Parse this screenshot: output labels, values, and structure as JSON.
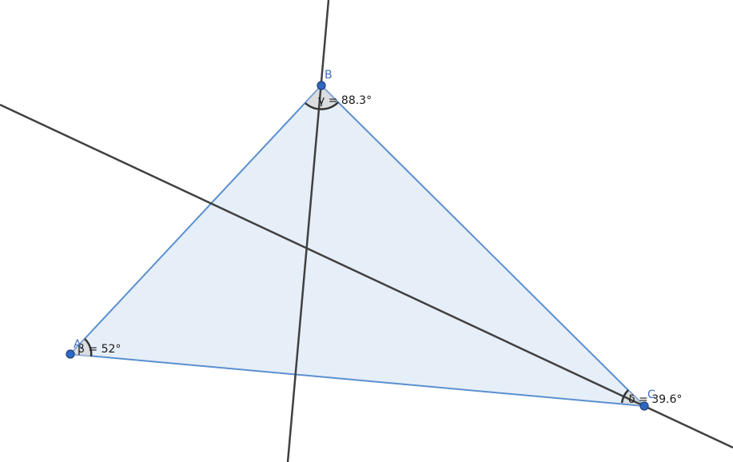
{
  "points": {
    "A": {
      "label": "A"
    },
    "B": {
      "label": "B"
    },
    "C": {
      "label": "C"
    }
  },
  "angles": {
    "A": {
      "text": "β = 52°"
    },
    "B": {
      "text": "γ = 88.3°"
    },
    "C": {
      "text": "δ = 39.6°"
    }
  },
  "colors": {
    "triangle_fill": "#e6eef8",
    "triangle_edge": "#5b8fd0",
    "line": "#404040",
    "point": "#2f68c4",
    "angle_arc": "#333333"
  }
}
